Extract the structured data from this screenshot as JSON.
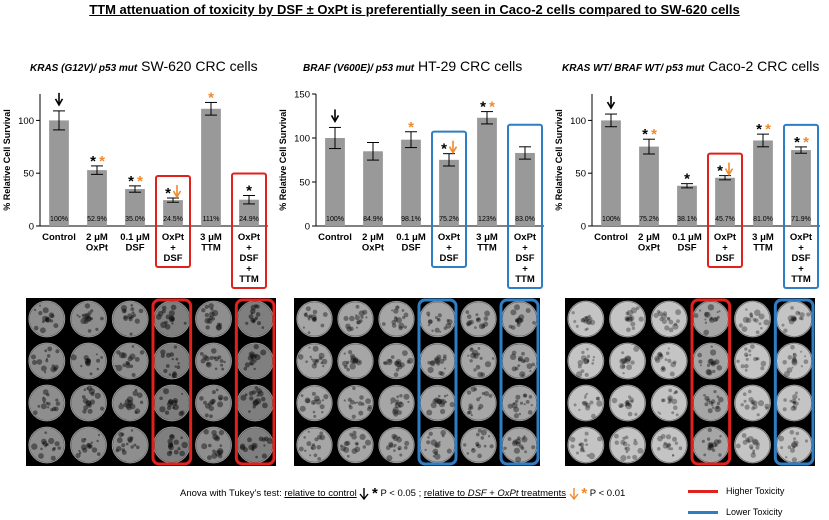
{
  "title": "TTM attenuation of toxicity  by DSF ± OxPt  is preferentially  seen in Caco-2 cells compared to SW-620 cells",
  "colors": {
    "bar": "#999999",
    "higher": "#e0211c",
    "lower": "#2f7dc4",
    "arrow_orange": "#f0892a"
  },
  "chart_data": [
    {
      "type": "bar",
      "panel_mutation": "KRAS (G12V)/ p53 mut",
      "panel_cells": "SW-620 CRC cells",
      "ylabel": "% Relative Cell Survival",
      "ylim": [
        0,
        125
      ],
      "yticks": [
        "0",
        "50",
        "100"
      ],
      "categories": [
        [
          "Control"
        ],
        [
          "2 μM",
          "OxPt"
        ],
        [
          "0.1 μM",
          "DSF"
        ],
        [
          "OxPt",
          "+",
          "DSF"
        ],
        [
          "3 μM",
          "TTM"
        ],
        [
          "OxPt",
          "+",
          "DSF",
          "+",
          "TTM"
        ]
      ],
      "values": [
        100,
        52.9,
        35.0,
        24.5,
        111,
        24.9
      ],
      "value_labels": [
        "100%",
        "52.9%",
        "35.0%",
        "24.5%",
        "111%",
        "24.9%"
      ],
      "errors": [
        9,
        4,
        3,
        2,
        6,
        4
      ],
      "markers": [
        "down",
        "both",
        "both",
        "both-arrow",
        "orange",
        "black"
      ],
      "boxes": [
        "",
        "",
        "",
        "higher",
        "",
        "higher"
      ]
    },
    {
      "type": "bar",
      "panel_mutation": "BRAF (V600E)/ p53 mut",
      "panel_cells": "HT-29 CRC cells",
      "ylabel": "% Relative Cell Survival",
      "ylim": [
        0,
        150
      ],
      "yticks": [
        "0",
        "50",
        "100",
        "150"
      ],
      "categories": [
        [
          "Control"
        ],
        [
          "2 μM",
          "OxPt"
        ],
        [
          "0.1 μM",
          "DSF"
        ],
        [
          "OxPt",
          "+",
          "DSF"
        ],
        [
          "3 μM",
          "TTM"
        ],
        [
          "OxPt",
          "+",
          "DSF",
          "+",
          "TTM"
        ]
      ],
      "values": [
        100,
        84.9,
        98.1,
        75.2,
        123,
        83.0
      ],
      "value_labels": [
        "100%",
        "84.9%",
        "98.1%",
        "75.2%",
        "123%",
        "83.0%"
      ],
      "errors": [
        12,
        10,
        9,
        7,
        7,
        7
      ],
      "markers": [
        "down",
        "",
        "orange",
        "both-arrow",
        "both",
        ""
      ],
      "boxes": [
        "",
        "",
        "",
        "lower",
        "",
        "lower"
      ]
    },
    {
      "type": "bar",
      "panel_mutation": "KRAS WT/ BRAF WT/ p53 mut",
      "panel_cells": "Caco-2 CRC cells",
      "ylabel": "% Relative Cell Survival",
      "ylim": [
        0,
        125
      ],
      "yticks": [
        "0",
        "50",
        "100"
      ],
      "categories": [
        [
          "Control"
        ],
        [
          "2 μM",
          "OxPt"
        ],
        [
          "0.1 μM",
          "DSF"
        ],
        [
          "OxPt",
          "+",
          "DSF"
        ],
        [
          "3 μM",
          "TTM"
        ],
        [
          "OxPt",
          "+",
          "DSF",
          "+",
          "TTM"
        ]
      ],
      "values": [
        100,
        75.2,
        38.1,
        45.7,
        81.0,
        71.9
      ],
      "value_labels": [
        "100%",
        "75.2%",
        "38.1%",
        "45.7%",
        "81.0%",
        "71.9%"
      ],
      "errors": [
        6,
        7,
        2,
        2,
        6,
        3
      ],
      "markers": [
        "down",
        "both",
        "black",
        "both-arrow",
        "both",
        "both"
      ],
      "boxes": [
        "",
        "",
        "",
        "higher",
        "",
        "lower"
      ]
    }
  ],
  "plates": [
    {
      "texture": "sparse",
      "boxes": [
        "",
        "",
        "",
        "higher",
        "",
        "higher"
      ]
    },
    {
      "texture": "medium",
      "boxes": [
        "",
        "",
        "",
        "lower",
        "",
        "lower"
      ]
    },
    {
      "texture": "dense",
      "boxes": [
        "",
        "",
        "",
        "higher",
        "",
        "lower"
      ]
    }
  ],
  "footnote": {
    "prefix": "Anova with Tukey’s test: ",
    "rel_control": "relative to control",
    "star": "*",
    "p1": " P < 0.05 ; ",
    "rel_dsf_a": "relative to ",
    "rel_dsf_b": "DSF + OxPt",
    "rel_dsf_c": " treatments",
    "p2": " P < 0.01"
  },
  "legend": {
    "higher": "Higher Toxicity",
    "lower": "Lower Toxicity"
  }
}
